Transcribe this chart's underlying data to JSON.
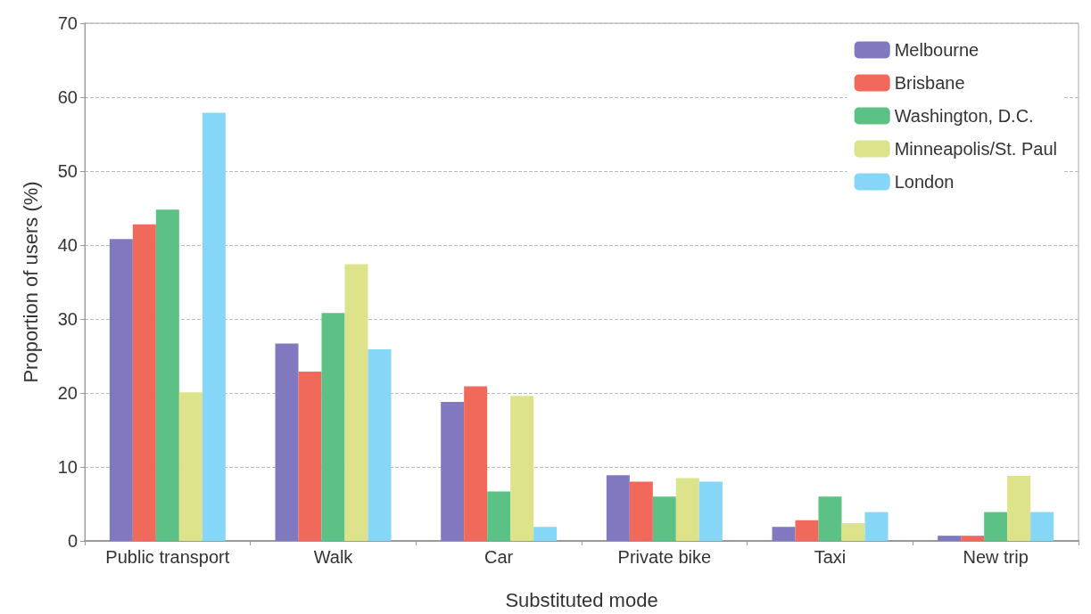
{
  "chart_data": {
    "type": "bar",
    "xlabel": "Substituted mode",
    "ylabel": "Proportion of users (%)",
    "categories": [
      "Public transport",
      "Walk",
      "Car",
      "Private bike",
      "Taxi",
      "New trip"
    ],
    "series": [
      {
        "name": "Melbourne",
        "color": "#8079c0",
        "values": [
          40.8,
          26.7,
          18.8,
          8.9,
          1.9,
          0.7
        ]
      },
      {
        "name": "Brisbane",
        "color": "#f0695a",
        "values": [
          42.8,
          22.9,
          20.9,
          8,
          2.8,
          0.7
        ]
      },
      {
        "name": "Washington, D.C.",
        "color": "#5cc184",
        "values": [
          44.8,
          30.8,
          6.7,
          6,
          6,
          3.9
        ]
      },
      {
        "name": "Minneapolis/St. Paul",
        "color": "#dde38a",
        "values": [
          20.1,
          37.4,
          19.6,
          8.5,
          2.4,
          8.8
        ]
      },
      {
        "name": "London",
        "color": "#85d6f7",
        "values": [
          57.9,
          25.9,
          1.9,
          8,
          3.9,
          3.9
        ]
      }
    ],
    "ylim": [
      0,
      70
    ],
    "yticks": [
      0,
      10,
      20,
      30,
      40,
      50,
      60,
      70
    ],
    "grid": "y",
    "legend": "top right"
  }
}
